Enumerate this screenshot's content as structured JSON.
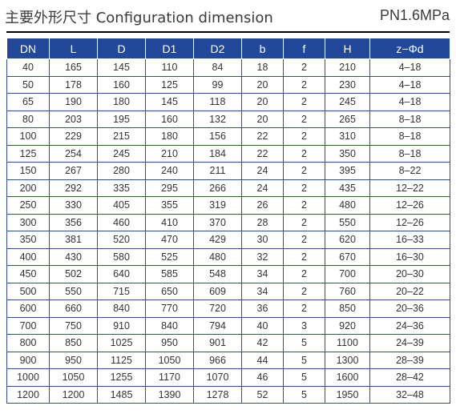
{
  "header": {
    "title": "主要外形尺寸 Configuration dimension",
    "pressure": "PN1.6MPa"
  },
  "table": {
    "columns": [
      "DN",
      "L",
      "D",
      "D1",
      "D2",
      "b",
      "f",
      "H",
      "z−Φd"
    ],
    "rows": [
      [
        "40",
        "165",
        "145",
        "110",
        "84",
        "18",
        "2",
        "210",
        "4–18"
      ],
      [
        "50",
        "178",
        "160",
        "125",
        "99",
        "20",
        "2",
        "230",
        "4–18"
      ],
      [
        "65",
        "190",
        "180",
        "145",
        "118",
        "20",
        "2",
        "245",
        "4–18"
      ],
      [
        "80",
        "203",
        "195",
        "160",
        "132",
        "20",
        "2",
        "265",
        "8–18"
      ],
      [
        "100",
        "229",
        "215",
        "180",
        "156",
        "22",
        "2",
        "310",
        "8–18"
      ],
      [
        "125",
        "254",
        "245",
        "210",
        "184",
        "22",
        "2",
        "350",
        "8–18"
      ],
      [
        "150",
        "267",
        "280",
        "240",
        "211",
        "24",
        "2",
        "395",
        "8–22"
      ],
      [
        "200",
        "292",
        "335",
        "295",
        "266",
        "24",
        "2",
        "435",
        "12–22"
      ],
      [
        "250",
        "330",
        "405",
        "355",
        "319",
        "26",
        "2",
        "480",
        "12–26"
      ],
      [
        "300",
        "356",
        "460",
        "410",
        "370",
        "28",
        "2",
        "550",
        "12–26"
      ],
      [
        "350",
        "381",
        "520",
        "470",
        "429",
        "30",
        "2",
        "620",
        "16–33"
      ],
      [
        "400",
        "430",
        "580",
        "525",
        "480",
        "32",
        "2",
        "670",
        "16–30"
      ],
      [
        "450",
        "502",
        "640",
        "585",
        "548",
        "34",
        "2",
        "700",
        "20–30"
      ],
      [
        "500",
        "550",
        "715",
        "650",
        "609",
        "34",
        "2",
        "760",
        "20–22"
      ],
      [
        "600",
        "660",
        "840",
        "770",
        "720",
        "36",
        "2",
        "850",
        "20–36"
      ],
      [
        "700",
        "750",
        "910",
        "840",
        "794",
        "40",
        "3",
        "920",
        "24–36"
      ],
      [
        "800",
        "850",
        "1025",
        "950",
        "901",
        "42",
        "5",
        "1100",
        "24–39"
      ],
      [
        "900",
        "950",
        "1125",
        "1050",
        "966",
        "44",
        "5",
        "1300",
        "28–39"
      ],
      [
        "1000",
        "1050",
        "1255",
        "1170",
        "1070",
        "46",
        "5",
        "1600",
        "28–42"
      ],
      [
        "1200",
        "1200",
        "1485",
        "1390",
        "1278",
        "52",
        "5",
        "1950",
        "32–48"
      ]
    ]
  },
  "colors": {
    "header_fill": "#22489a",
    "header_text": "#ffffff",
    "grid_line": "#2e4f9c",
    "rule": "#000000"
  }
}
